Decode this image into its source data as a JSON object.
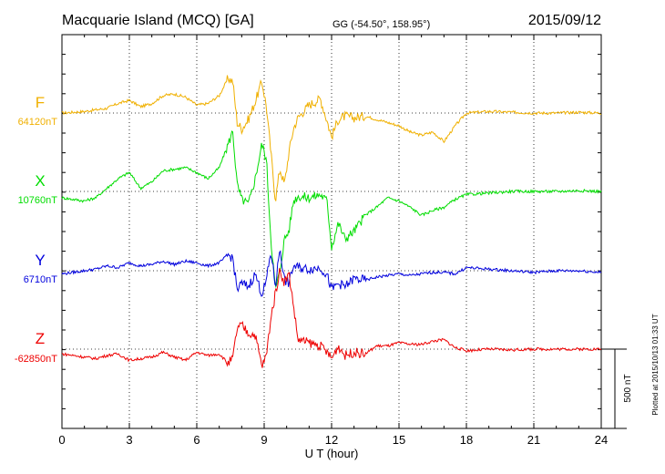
{
  "chart_data": {
    "type": "line",
    "title": "Macquarie Island (MCQ)  [GA]",
    "coords": "GG (-54.50°, 158.95°)",
    "date": "2015/09/12",
    "xlabel": "U T (hour)",
    "xlim": [
      0,
      24
    ],
    "xticks": [
      "0",
      "3",
      "6",
      "9",
      "12",
      "15",
      "18",
      "21",
      "24"
    ],
    "scale_label": "500 nT",
    "plotted_note": "Plotted at 2015/10/13 01:33 UT",
    "grid": true,
    "series": [
      {
        "name": "F",
        "baseline_label": "64120nT",
        "color": "#f0b000",
        "x": [
          0,
          0.5,
          1,
          1.5,
          2,
          2.5,
          3,
          3.5,
          4,
          4.5,
          5,
          5.5,
          6,
          6.5,
          7,
          7.4,
          7.6,
          7.8,
          8,
          8.3,
          8.6,
          8.9,
          9.1,
          9.3,
          9.5,
          9.7,
          9.9,
          10.1,
          10.3,
          10.5,
          11,
          11.5,
          11.8,
          12,
          12.3,
          12.6,
          13,
          13.5,
          14,
          14.5,
          15,
          15.5,
          16,
          16.5,
          17,
          17.5,
          18,
          19,
          20,
          21,
          22,
          23,
          24
        ],
        "y": [
          0,
          5,
          10,
          20,
          30,
          60,
          80,
          40,
          60,
          110,
          120,
          100,
          50,
          60,
          110,
          220,
          200,
          -60,
          -100,
          -40,
          70,
          200,
          40,
          -250,
          -550,
          -350,
          -450,
          -250,
          -100,
          -30,
          50,
          90,
          -50,
          -150,
          -40,
          -20,
          -30,
          -20,
          -40,
          -60,
          -80,
          -120,
          -140,
          -120,
          -180,
          -80,
          0,
          10,
          5,
          0,
          0,
          5,
          0
        ]
      },
      {
        "name": "X",
        "baseline_label": "10760nT",
        "color": "#00dd00",
        "x": [
          0,
          0.5,
          1,
          1.5,
          2,
          2.5,
          3,
          3.5,
          4,
          4.5,
          5,
          5.5,
          6,
          6.5,
          7,
          7.4,
          7.6,
          7.8,
          8,
          8.3,
          8.6,
          8.9,
          9.1,
          9.3,
          9.5,
          9.7,
          9.9,
          10.1,
          10.3,
          10.5,
          11,
          11.5,
          11.8,
          12,
          12.3,
          12.6,
          13,
          13.5,
          14,
          14.5,
          15,
          15.5,
          16,
          16.5,
          17,
          17.5,
          18,
          19,
          20,
          21,
          22,
          23,
          24
        ],
        "y": [
          -40,
          -50,
          -60,
          -40,
          20,
          80,
          120,
          20,
          60,
          130,
          140,
          150,
          120,
          80,
          150,
          300,
          380,
          40,
          -50,
          -80,
          80,
          300,
          200,
          -300,
          -620,
          -500,
          -300,
          -250,
          -60,
          -30,
          -40,
          -20,
          -60,
          -350,
          -200,
          -300,
          -250,
          -150,
          -100,
          -40,
          -60,
          -100,
          -150,
          -120,
          -100,
          -50,
          -20,
          -10,
          0,
          0,
          0,
          5,
          0
        ],
        "baseline": 0
      },
      {
        "name": "Y",
        "baseline_label": "6710nT",
        "color": "#0000dd",
        "x": [
          0,
          0.5,
          1,
          1.5,
          2,
          2.5,
          3,
          3.5,
          4,
          4.5,
          5,
          5.5,
          6,
          6.5,
          7,
          7.4,
          7.6,
          7.8,
          8,
          8.3,
          8.6,
          8.9,
          9.1,
          9.3,
          9.5,
          9.7,
          9.9,
          10.1,
          10.3,
          10.5,
          11,
          11.5,
          11.8,
          12,
          12.3,
          12.6,
          13,
          13.5,
          14,
          14.5,
          15,
          15.5,
          16,
          16.5,
          17,
          17.5,
          18,
          19,
          20,
          21,
          22,
          23,
          24
        ],
        "y": [
          -20,
          -10,
          0,
          10,
          30,
          20,
          50,
          30,
          40,
          60,
          40,
          60,
          50,
          30,
          50,
          100,
          80,
          -120,
          -80,
          -100,
          -20,
          -150,
          -60,
          120,
          -100,
          150,
          -60,
          -80,
          30,
          20,
          10,
          20,
          -30,
          -120,
          -80,
          -100,
          -50,
          -60,
          -40,
          -30,
          -20,
          -30,
          -20,
          -10,
          -10,
          -20,
          20,
          10,
          0,
          -10,
          0,
          0,
          -10
        ]
      },
      {
        "name": "Z",
        "baseline_label": "-62850nT",
        "color": "#ee0000",
        "x": [
          0,
          0.5,
          1,
          1.5,
          2,
          2.5,
          3,
          3.5,
          4,
          4.5,
          5,
          5.5,
          6,
          6.5,
          7,
          7.4,
          7.6,
          7.8,
          8,
          8.3,
          8.6,
          8.9,
          9.1,
          9.3,
          9.5,
          9.7,
          9.9,
          10.1,
          10.3,
          10.5,
          11,
          11.5,
          11.8,
          12,
          12.3,
          12.6,
          13,
          13.5,
          14,
          14.5,
          15,
          15.5,
          16,
          16.5,
          17,
          17.5,
          18,
          19,
          20,
          21,
          22,
          23,
          24
        ],
        "y": [
          -30,
          -40,
          -50,
          -60,
          -40,
          -30,
          -70,
          -60,
          -50,
          -20,
          -50,
          -70,
          -20,
          -40,
          -30,
          -90,
          -60,
          130,
          150,
          100,
          90,
          -110,
          -40,
          200,
          350,
          500,
          420,
          480,
          280,
          60,
          40,
          20,
          -20,
          -60,
          20,
          -40,
          -20,
          -30,
          20,
          20,
          40,
          30,
          30,
          50,
          60,
          10,
          -10,
          0,
          -5,
          0,
          0,
          0,
          0
        ]
      }
    ]
  }
}
